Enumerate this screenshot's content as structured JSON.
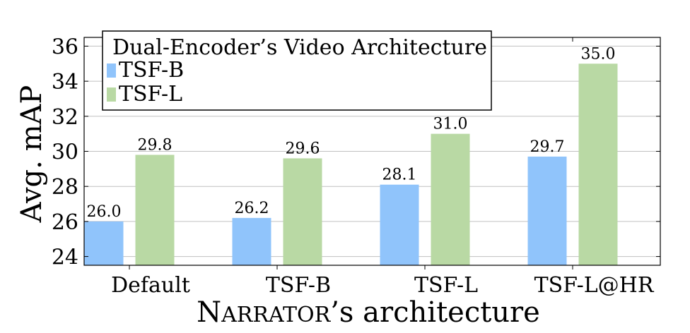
{
  "chart_data": {
    "type": "bar",
    "categories": [
      "Default",
      "TSF-B",
      "TSF-L",
      "TSF-L@HR"
    ],
    "series": [
      {
        "name": "TSF-B",
        "values": [
          26.0,
          26.2,
          28.1,
          29.7
        ],
        "color": "#90c4fb"
      },
      {
        "name": "TSF-L",
        "values": [
          29.8,
          29.6,
          31.0,
          35.0
        ],
        "color": "#b9d9a4"
      }
    ],
    "data_labels": [
      [
        "26.0",
        "26.2",
        "28.1",
        "29.7"
      ],
      [
        "29.8",
        "29.6",
        "31.0",
        "35.0"
      ]
    ],
    "ylabel": "Avg. mAP",
    "xlabel_prefix": "N",
    "xlabel_smallcaps": "ARRATOR",
    "xlabel_suffix": "’s architecture",
    "legend_title": "Dual-Encoder’s Video Architecture",
    "legend_position": "top-left",
    "ylim": [
      23.5,
      36.5
    ],
    "yticks": [
      24,
      26,
      28,
      30,
      32,
      34,
      36
    ],
    "grid": true,
    "grid_color": "#c0c0c0"
  }
}
